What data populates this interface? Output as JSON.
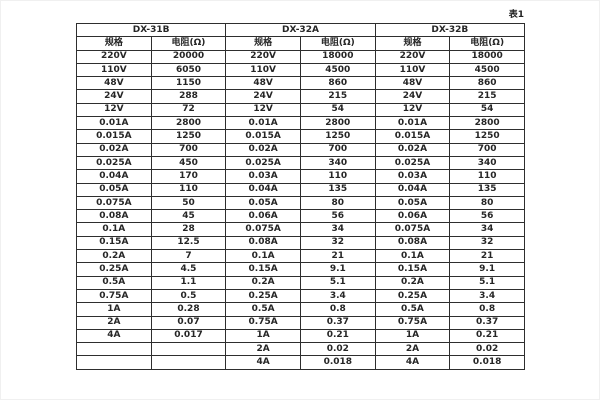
{
  "caption": "表1",
  "table": {
    "groups": [
      {
        "name": "DX-31B"
      },
      {
        "name": "DX-32A"
      },
      {
        "name": "DX-32B"
      }
    ],
    "sub_headers": {
      "spec": "规格",
      "resistance": "电阻(Ω)"
    },
    "rows": [
      [
        "220V",
        "20000",
        "220V",
        "18000",
        "220V",
        "18000"
      ],
      [
        "110V",
        "6050",
        "110V",
        "4500",
        "110V",
        "4500"
      ],
      [
        "48V",
        "1150",
        "48V",
        "860",
        "48V",
        "860"
      ],
      [
        "24V",
        "288",
        "24V",
        "215",
        "24V",
        "215"
      ],
      [
        "12V",
        "72",
        "12V",
        "54",
        "12V",
        "54"
      ],
      [
        "0.01A",
        "2800",
        "0.01A",
        "2800",
        "0.01A",
        "2800"
      ],
      [
        "0.015A",
        "1250",
        "0.015A",
        "1250",
        "0.015A",
        "1250"
      ],
      [
        "0.02A",
        "700",
        "0.02A",
        "700",
        "0.02A",
        "700"
      ],
      [
        "0.025A",
        "450",
        "0.025A",
        "340",
        "0.025A",
        "340"
      ],
      [
        "0.04A",
        "170",
        "0.03A",
        "110",
        "0.03A",
        "110"
      ],
      [
        "0.05A",
        "110",
        "0.04A",
        "135",
        "0.04A",
        "135"
      ],
      [
        "0.075A",
        "50",
        "0.05A",
        "80",
        "0.05A",
        "80"
      ],
      [
        "0.08A",
        "45",
        "0.06A",
        "56",
        "0.06A",
        "56"
      ],
      [
        "0.1A",
        "28",
        "0.075A",
        "34",
        "0.075A",
        "34"
      ],
      [
        "0.15A",
        "12.5",
        "0.08A",
        "32",
        "0.08A",
        "32"
      ],
      [
        "0.2A",
        "7",
        "0.1A",
        "21",
        "0.1A",
        "21"
      ],
      [
        "0.25A",
        "4.5",
        "0.15A",
        "9.1",
        "0.15A",
        "9.1"
      ],
      [
        "0.5A",
        "1.1",
        "0.2A",
        "5.1",
        "0.2A",
        "5.1"
      ],
      [
        "0.75A",
        "0.5",
        "0.25A",
        "3.4",
        "0.25A",
        "3.4"
      ],
      [
        "1A",
        "0.28",
        "0.5A",
        "0.8",
        "0.5A",
        "0.8"
      ],
      [
        "2A",
        "0.07",
        "0.75A",
        "0.37",
        "0.75A",
        "0.37"
      ],
      [
        "4A",
        "0.017",
        "1A",
        "0.21",
        "1A",
        "0.21"
      ],
      [
        "",
        "",
        "2A",
        "0.02",
        "2A",
        "0.02"
      ],
      [
        "",
        "",
        "4A",
        "0.018",
        "4A",
        "0.018"
      ]
    ]
  }
}
